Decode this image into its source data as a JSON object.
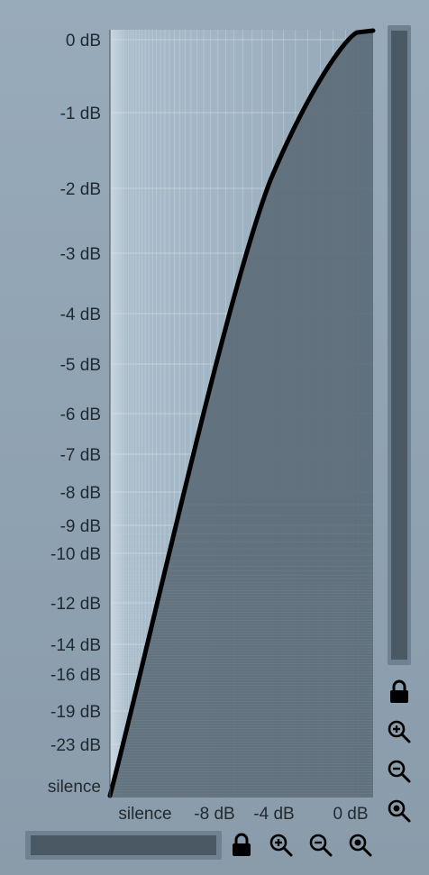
{
  "y_axis": {
    "ticks": [
      "0 dB",
      "-1 dB",
      "-2 dB",
      "-3 dB",
      "-4 dB",
      "-5 dB",
      "-6 dB",
      "-7 dB",
      "-8 dB",
      "-9 dB",
      "-10 dB",
      "-12 dB",
      "-14 dB",
      "-16 dB",
      "-19 dB",
      "-23 dB",
      "silence"
    ]
  },
  "x_axis": {
    "ticks": [
      "silence",
      "-8 dB",
      "-4 dB",
      "0 dB"
    ]
  },
  "colors": {
    "background": "#93a6b6",
    "plot_fill": "#5d6d78",
    "curve": "#000000",
    "scroll_thumb": "#4a5964"
  },
  "controls": {
    "vertical": [
      "lock-icon",
      "zoom-in-icon",
      "zoom-out-icon",
      "zoom-reset-icon"
    ],
    "horizontal": [
      "lock-icon",
      "zoom-in-icon",
      "zoom-out-icon",
      "zoom-reset-icon"
    ]
  }
}
